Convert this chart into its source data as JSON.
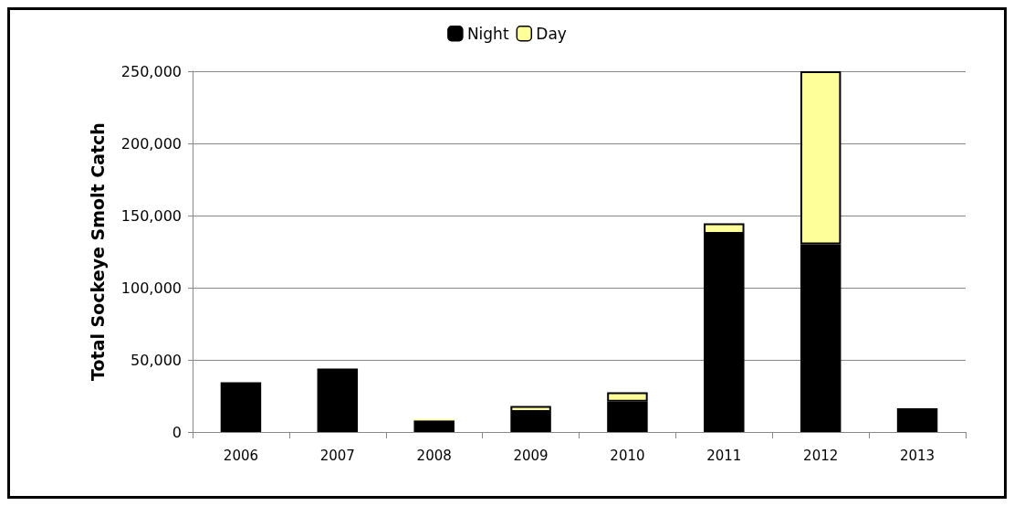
{
  "chart_data": {
    "type": "bar",
    "stacked": true,
    "ylabel": "Total Sockeye Smolt Catch",
    "categories": [
      "2006",
      "2007",
      "2008",
      "2009",
      "2010",
      "2011",
      "2012",
      "2013"
    ],
    "series": [
      {
        "name": "Night",
        "color": "#000000",
        "values": [
          34500,
          44000,
          8000,
          14000,
          21000,
          137300,
          130000,
          16500
        ]
      },
      {
        "name": "Day",
        "color": "#ffff99",
        "values": [
          0,
          0,
          1000,
          4000,
          6500,
          7300,
          120000,
          0
        ]
      }
    ],
    "ylim": [
      0,
      250000
    ],
    "yticks": [
      0,
      {
        "value": 50000,
        "label": "50,000"
      },
      {
        "value": 100000,
        "label": "100,000"
      },
      {
        "value": 150000,
        "label": "150,000"
      },
      {
        "value": 200000,
        "label": "200,000"
      },
      {
        "value": 250000,
        "label": "250,000"
      }
    ],
    "grid": "y",
    "legend": "top"
  }
}
